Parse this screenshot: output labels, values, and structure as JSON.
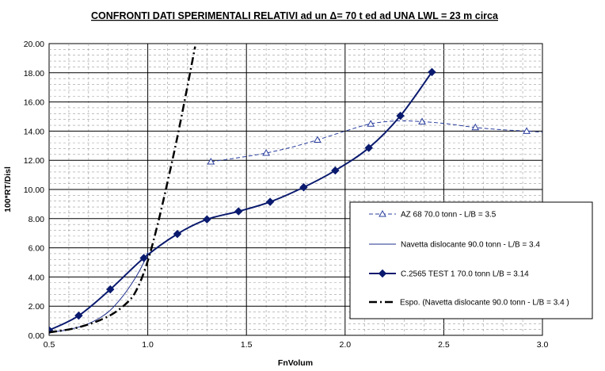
{
  "chart_data": {
    "type": "line",
    "title": "CONFRONTI DATI SPERIMENTALI RELATIVI ad un Δ= 70 t ed ad UNA LWL = 23 m  circa",
    "xlabel": "FnVolum",
    "ylabel": "100*RT/Disl",
    "xlim": [
      0.5,
      3.0
    ],
    "ylim": [
      0.0,
      20.0
    ],
    "x_ticks": [
      "0.5",
      "1.0",
      "1.5",
      "2.0",
      "2.5",
      "3.0"
    ],
    "x_tick_values": [
      0.5,
      1.0,
      1.5,
      2.0,
      2.5,
      3.0
    ],
    "y_ticks": [
      "0.00",
      "2.00",
      "4.00",
      "6.00",
      "8.00",
      "10.00",
      "12.00",
      "14.00",
      "16.00",
      "18.00",
      "20.00"
    ],
    "y_tick_values": [
      0,
      2,
      4,
      6,
      8,
      10,
      12,
      14,
      16,
      18,
      20
    ],
    "grid": true,
    "legend_position": "bottom-right",
    "series": [
      {
        "name": "AZ 68 70.0  tonn - L/B = 3.5",
        "color": "#2b3f9e",
        "line_style": "dashed",
        "marker": "open-triangle",
        "x": [
          1.32,
          1.47,
          1.6,
          1.73,
          1.86,
          2.0,
          2.13,
          2.26,
          2.39,
          2.52,
          2.66,
          2.79,
          2.92,
          3.02
        ],
        "y": [
          11.9,
          12.2,
          12.5,
          12.9,
          13.4,
          14.0,
          14.5,
          14.7,
          14.65,
          14.5,
          14.25,
          14.1,
          14.0,
          13.9
        ],
        "markers_at": [
          0,
          2,
          4,
          6,
          8,
          10,
          12
        ]
      },
      {
        "name": "Navetta dislocante 90.0  tonn - L/B = 3.4",
        "color": "#1f2f8c",
        "line_style": "solid-thin",
        "marker": "none",
        "x": [
          0.5,
          0.6,
          0.7,
          0.8,
          0.88,
          0.94,
          0.98,
          1.0
        ],
        "y": [
          0.2,
          0.4,
          0.8,
          1.6,
          2.8,
          4.0,
          5.0,
          5.7
        ]
      },
      {
        "name": "C.2565 TEST 1 70.0  tonn L/B = 3.14",
        "color": "#0a1a6e",
        "line_style": "solid-thick",
        "marker": "filled-diamond",
        "x": [
          0.5,
          0.65,
          0.81,
          0.98,
          1.15,
          1.3,
          1.46,
          1.62,
          1.79,
          1.95,
          2.12,
          2.28,
          2.44
        ],
        "y": [
          0.35,
          1.35,
          3.15,
          5.3,
          6.95,
          7.95,
          8.5,
          9.15,
          10.15,
          11.3,
          12.85,
          15.05,
          18.05
        ]
      },
      {
        "name": "Espo. (Navetta dislocante 90.0  tonn - L/B = 3.4 )",
        "color": "#000000",
        "line_style": "dash-dot",
        "marker": "none",
        "x": [
          0.5,
          0.65,
          0.8,
          0.9,
          0.95,
          1.0,
          1.05,
          1.1,
          1.15,
          1.2,
          1.24
        ],
        "y": [
          0.2,
          0.55,
          1.3,
          2.3,
          3.3,
          5.1,
          7.6,
          10.5,
          13.6,
          17.0,
          19.8
        ]
      }
    ]
  }
}
